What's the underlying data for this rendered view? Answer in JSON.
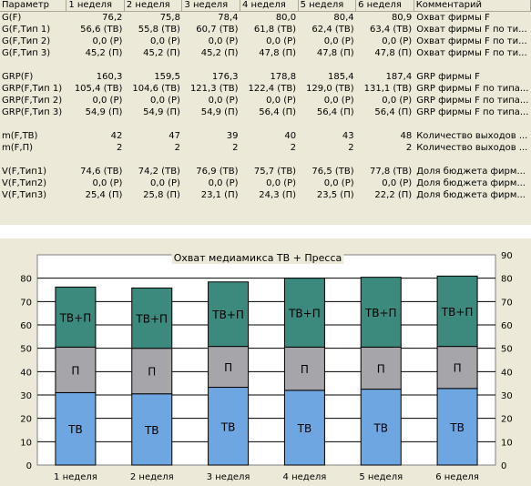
{
  "table": {
    "columns": [
      "Параметр",
      "1 неделя",
      "2 неделя",
      "3 неделя",
      "4 неделя",
      "5 неделя",
      "6 неделя",
      "Комментарий"
    ],
    "rows": [
      [
        "G(F)",
        "76,2",
        "75,8",
        "78,4",
        "80,0",
        "80,4",
        "80,9",
        "Охват фирмы F"
      ],
      [
        "G(F,Тип 1)",
        "56,6 (ТВ)",
        "55,8 (ТВ)",
        "60,7 (ТВ)",
        "61,8 (ТВ)",
        "62,4 (ТВ)",
        "63,4 (ТВ)",
        "Охват фирмы F по ти..."
      ],
      [
        "G(F,Тип 2)",
        "0,0 (Р)",
        "0,0 (Р)",
        "0,0 (Р)",
        "0,0 (Р)",
        "0,0 (Р)",
        "0,0 (Р)",
        "Охват фирмы F по ти..."
      ],
      [
        "G(F,Тип 3)",
        "45,2 (П)",
        "45,2 (П)",
        "45,2 (П)",
        "47,8 (П)",
        "47,8 (П)",
        "47,8 (П)",
        "Охват фирмы F по ти..."
      ],
      [
        "",
        "",
        "",
        "",
        "",
        "",
        "",
        ""
      ],
      [
        "GRP(F)",
        "160,3",
        "159,5",
        "176,3",
        "178,8",
        "185,4",
        "187,4",
        "GRP фирмы F"
      ],
      [
        "GRP(F,Тип 1)",
        "105,4 (ТВ)",
        "104,6 (ТВ)",
        "121,3 (ТВ)",
        "122,4 (ТВ)",
        "129,0 (ТВ)",
        "131,1 (ТВ)",
        "GRP фирмы F по типа..."
      ],
      [
        "GRP(F,Тип 2)",
        "0,0 (Р)",
        "0,0 (Р)",
        "0,0 (Р)",
        "0,0 (Р)",
        "0,0 (Р)",
        "0,0 (Р)",
        "GRP фирмы F по типа..."
      ],
      [
        "GRP(F,Тип 3)",
        "54,9 (П)",
        "54,9 (П)",
        "54,9 (П)",
        "56,4 (П)",
        "56,4 (П)",
        "56,4 (П)",
        "GRP фирмы F по типа..."
      ],
      [
        "",
        "",
        "",
        "",
        "",
        "",
        "",
        ""
      ],
      [
        "m(F,ТВ)",
        "42",
        "47",
        "39",
        "40",
        "43",
        "48",
        "Количество выходов ..."
      ],
      [
        "m(F,П)",
        "2",
        "2",
        "2",
        "2",
        "2",
        "2",
        "Количество выходов ..."
      ],
      [
        "",
        "",
        "",
        "",
        "",
        "",
        "",
        ""
      ],
      [
        "V(F,Тип1)",
        "74,6 (ТВ)",
        "74,2 (ТВ)",
        "76,9 (ТВ)",
        "75,7 (ТВ)",
        "76,5 (ТВ)",
        "77,8 (ТВ)",
        "Доля бюджета фирм..."
      ],
      [
        "V(F,Тип2)",
        "0,0 (Р)",
        "0,0 (Р)",
        "0,0 (Р)",
        "0,0 (Р)",
        "0,0 (Р)",
        "0,0 (Р)",
        "Доля бюджета фирм..."
      ],
      [
        "V(F,Тип3)",
        "25,4 (П)",
        "25,8 (П)",
        "23,1 (П)",
        "24,3 (П)",
        "23,5 (П)",
        "22,2 (П)",
        "Доля бюджета фирм..."
      ]
    ]
  },
  "chart_data": {
    "type": "bar",
    "stacked": true,
    "title": "Охват медиамикса ТВ + Пресса",
    "categories": [
      "1 неделя",
      "2 неделя",
      "3 неделя",
      "4 неделя",
      "5 неделя",
      "6 неделя"
    ],
    "series": [
      {
        "name": "ТВ",
        "values": [
          31,
          30.5,
          33.3,
          32,
          32.5,
          32.8
        ],
        "color": "#6ea6e2"
      },
      {
        "name": "П",
        "values": [
          19.5,
          19.5,
          17.5,
          18.5,
          18,
          18
        ],
        "color": "#a6a6aa"
      },
      {
        "name": "ТВ+П",
        "values": [
          25.7,
          25.8,
          27.6,
          29.5,
          29.9,
          30.1
        ],
        "color": "#3b8a7d"
      }
    ],
    "ylim": [
      0,
      90
    ],
    "yticks": [
      0,
      10,
      20,
      30,
      40,
      50,
      60,
      70,
      80,
      90
    ],
    "ytick_labels_left": [
      "0",
      "10",
      "20",
      "30",
      "40",
      "50",
      "60",
      "70",
      "80",
      ""
    ],
    "ytick_labels_right": [
      "0",
      "10",
      "20",
      "30",
      "40",
      "50",
      "60",
      "70",
      "80",
      "90"
    ],
    "grid": true
  }
}
